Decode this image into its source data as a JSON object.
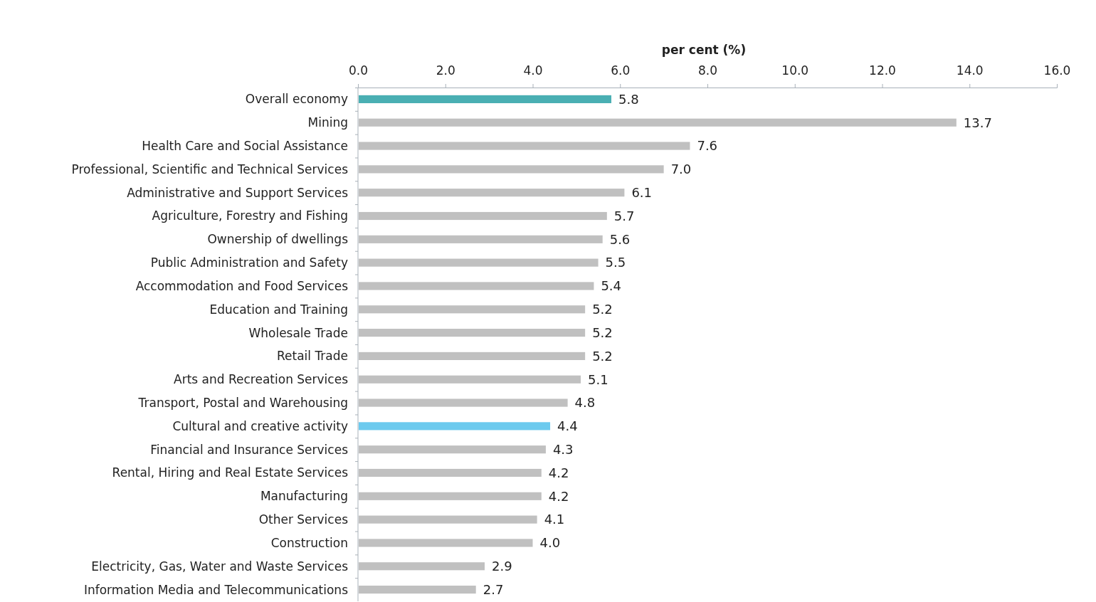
{
  "chart_data": {
    "type": "bar",
    "orientation": "horizontal",
    "xlabel": "per cent (%)",
    "categories": [
      "Overall economy",
      "Mining",
      "Health Care and Social Assistance",
      "Professional, Scientific and Technical Services",
      "Administrative and Support Services",
      "Agriculture, Forestry and Fishing",
      "Ownership of dwellings",
      "Public Administration and Safety",
      "Accommodation and Food Services",
      "Education and Training",
      "Wholesale Trade",
      "Retail Trade",
      "Arts and Recreation Services",
      "Transport, Postal and Warehousing",
      "Cultural and creative activity",
      "Financial and Insurance Services",
      "Rental, Hiring and Real Estate Services",
      "Manufacturing",
      "Other Services",
      "Construction",
      "Electricity, Gas, Water and Waste Services",
      "Information Media and Telecommunications"
    ],
    "values": [
      5.8,
      13.7,
      7.6,
      7.0,
      6.1,
      5.7,
      5.6,
      5.5,
      5.4,
      5.2,
      5.2,
      5.2,
      5.1,
      4.8,
      4.4,
      4.3,
      4.2,
      4.2,
      4.1,
      4.0,
      2.9,
      2.7
    ],
    "value_labels": [
      "5.8",
      "13.7",
      "7.6",
      "7.0",
      "6.1",
      "5.7",
      "5.6",
      "5.5",
      "5.4",
      "5.2",
      "5.2",
      "5.2",
      "5.1",
      "4.8",
      "4.4",
      "4.3",
      "4.2",
      "4.2",
      "4.1",
      "4.0",
      "2.9",
      "2.7"
    ],
    "colors": [
      "#4aafb3",
      "#c0c0c0",
      "#c0c0c0",
      "#c0c0c0",
      "#c0c0c0",
      "#c0c0c0",
      "#c0c0c0",
      "#c0c0c0",
      "#c0c0c0",
      "#c0c0c0",
      "#c0c0c0",
      "#c0c0c0",
      "#c0c0c0",
      "#c0c0c0",
      "#6ccaee",
      "#c0c0c0",
      "#c0c0c0",
      "#c0c0c0",
      "#c0c0c0",
      "#c0c0c0",
      "#c0c0c0",
      "#c0c0c0"
    ],
    "xlim": [
      0,
      16
    ],
    "xticks": [
      {
        "value": 0,
        "label": "0.0"
      },
      {
        "value": 2,
        "label": "2.0"
      },
      {
        "value": 4,
        "label": "4.0"
      },
      {
        "value": 6,
        "label": "6.0"
      },
      {
        "value": 8,
        "label": "8.0"
      },
      {
        "value": 10,
        "label": "10.0"
      },
      {
        "value": 12,
        "label": "12.0"
      },
      {
        "value": 14,
        "label": "14.0"
      },
      {
        "value": 16,
        "label": "16.0"
      }
    ],
    "grid": false
  }
}
